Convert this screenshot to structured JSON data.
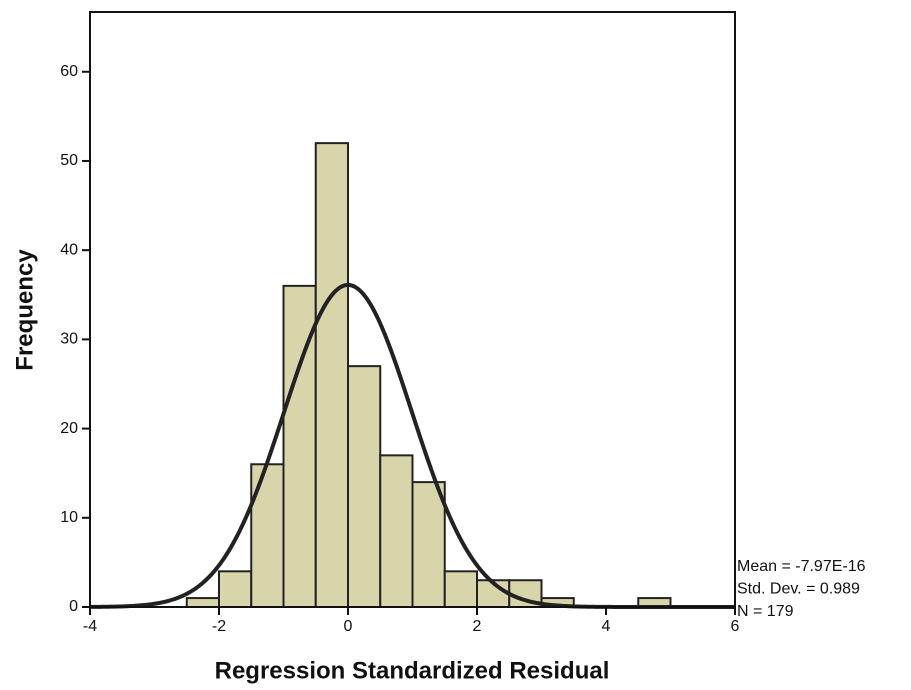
{
  "chart_data": {
    "type": "histogram",
    "x_label": "Regression Standardized Residual",
    "y_label": "Frequency",
    "bins": [
      -2.5,
      -2,
      -1.5,
      -1,
      -0.5,
      0,
      0.5,
      1,
      1.5,
      2,
      2.5,
      3,
      3.5,
      4,
      4.5,
      5
    ],
    "counts": [
      1,
      4,
      16,
      36,
      52,
      27,
      17,
      14,
      4,
      3,
      3,
      1,
      0,
      0,
      1
    ],
    "color": "#d9d5ab",
    "edge_color": "#222222",
    "curve_color": "#222222",
    "xlim": [
      -4,
      6
    ],
    "xticks": [
      -4,
      -2,
      0,
      2,
      4,
      6
    ],
    "ylim": [
      0,
      66.7
    ],
    "yticks": [
      0,
      10,
      20,
      30,
      40,
      50,
      60
    ],
    "stats": [
      {
        "value": -7.97e-16,
        "label": "Mean = -7.97E-16"
      },
      {
        "value": 0.989,
        "label": "Std. Dev. = 0.989"
      },
      {
        "value": 179,
        "label": "N = 179"
      }
    ]
  }
}
